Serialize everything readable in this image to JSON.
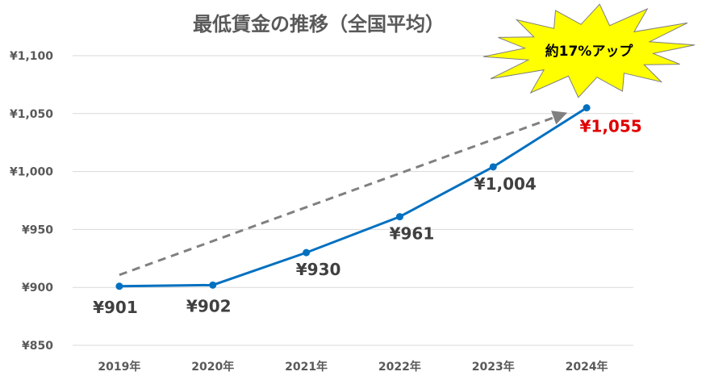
{
  "chart_data": {
    "type": "line",
    "title": "最低賃金の推移（全国平均）",
    "categories": [
      "2019年",
      "2020年",
      "2021年",
      "2022年",
      "2023年",
      "2024年"
    ],
    "series": [
      {
        "values": [
          901,
          902,
          930,
          961,
          1004,
          1055
        ]
      }
    ],
    "data_labels": [
      "¥901",
      "¥902",
      "¥930",
      "¥961",
      "¥1,004",
      "¥1,055"
    ],
    "highlight_index": 5,
    "y_ticks": [
      850,
      900,
      950,
      1000,
      1050,
      1100
    ],
    "y_tick_labels": [
      "¥850",
      "¥900",
      "¥950",
      "¥1,000",
      "¥1,050",
      "¥1,100"
    ],
    "ylim": [
      850,
      1100
    ],
    "grid": true,
    "xlabel": "",
    "ylabel": "",
    "annotation": "約17%アップ",
    "colors": {
      "line": "#0070C0",
      "grid": "#D9D9D9",
      "trend_arrow": "#808080",
      "highlight_label": "#E00000",
      "burst_fill": "#FFFF00"
    }
  }
}
